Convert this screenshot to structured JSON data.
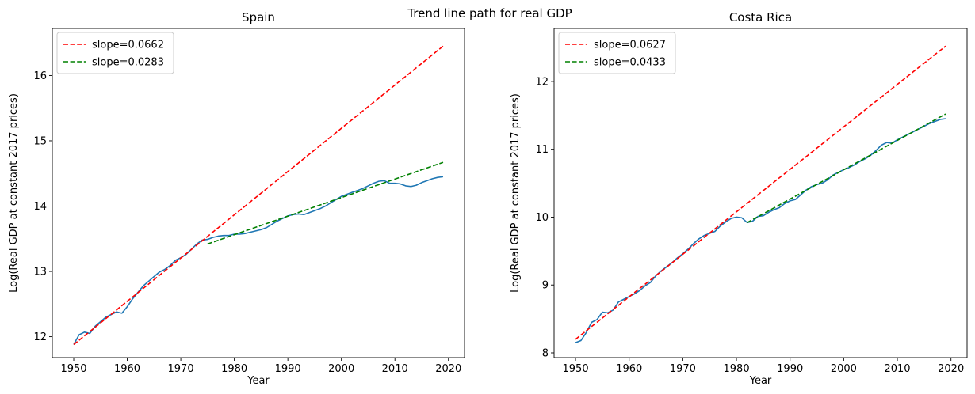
{
  "suptitle": "Trend line path for real GDP",
  "chart_data": [
    {
      "type": "line",
      "title": "Spain",
      "xlabel": "Year",
      "ylabel": "Log(Real GDP at constant 2017 prices)",
      "xlim": [
        1946,
        2023
      ],
      "ylim": [
        11.68,
        16.72
      ],
      "xticks": [
        1950,
        1960,
        1970,
        1980,
        1990,
        2000,
        2010,
        2020
      ],
      "yticks": [
        12,
        13,
        14,
        15,
        16
      ],
      "legend": "upper-left",
      "grid": false,
      "series": [
        {
          "name": "",
          "color": "#1f77b4",
          "style": "solid",
          "x": [
            1950,
            1951,
            1952,
            1953,
            1954,
            1955,
            1956,
            1957,
            1958,
            1959,
            1960,
            1961,
            1962,
            1963,
            1964,
            1965,
            1966,
            1967,
            1968,
            1969,
            1970,
            1971,
            1972,
            1973,
            1974,
            1975,
            1976,
            1977,
            1978,
            1979,
            1980,
            1981,
            1982,
            1983,
            1984,
            1985,
            1986,
            1987,
            1988,
            1989,
            1990,
            1991,
            1992,
            1993,
            1994,
            1995,
            1996,
            1997,
            1998,
            1999,
            2000,
            2001,
            2002,
            2003,
            2004,
            2005,
            2006,
            2007,
            2008,
            2009,
            2010,
            2011,
            2012,
            2013,
            2014,
            2015,
            2016,
            2017,
            2018,
            2019
          ],
          "y": [
            11.88,
            12.03,
            12.07,
            12.05,
            12.16,
            12.23,
            12.3,
            12.34,
            12.38,
            12.36,
            12.46,
            12.58,
            12.68,
            12.78,
            12.85,
            12.92,
            12.99,
            13.03,
            13.09,
            13.17,
            13.21,
            13.26,
            13.34,
            13.42,
            13.48,
            13.49,
            13.52,
            13.54,
            13.55,
            13.55,
            13.57,
            13.57,
            13.58,
            13.6,
            13.62,
            13.64,
            13.67,
            13.72,
            13.77,
            13.81,
            13.85,
            13.87,
            13.88,
            13.87,
            13.9,
            13.93,
            13.96,
            14.0,
            14.05,
            14.1,
            14.15,
            14.18,
            14.21,
            14.24,
            14.27,
            14.31,
            14.35,
            14.38,
            14.39,
            14.35,
            14.35,
            14.34,
            14.31,
            14.3,
            14.32,
            14.36,
            14.39,
            14.42,
            14.44,
            14.45
          ]
        },
        {
          "name": "slope=0.0662",
          "color": "#ff0000",
          "style": "dashed",
          "x": [
            1950,
            2019
          ],
          "y": [
            11.88,
            16.45
          ]
        },
        {
          "name": "slope=0.0283",
          "color": "#008000",
          "style": "dashed",
          "x": [
            1975,
            2019
          ],
          "y": [
            13.42,
            14.67
          ]
        }
      ]
    },
    {
      "type": "line",
      "title": "Costa Rica",
      "xlabel": "Year",
      "ylabel": "Log(Real GDP at constant 2017 prices)",
      "xlim": [
        1946,
        2023
      ],
      "ylim": [
        7.93,
        12.78
      ],
      "xticks": [
        1950,
        1960,
        1970,
        1980,
        1990,
        2000,
        2010,
        2020
      ],
      "yticks": [
        8,
        9,
        10,
        11,
        12
      ],
      "legend": "upper-left",
      "grid": false,
      "series": [
        {
          "name": "",
          "color": "#1f77b4",
          "style": "solid",
          "x": [
            1950,
            1951,
            1952,
            1953,
            1954,
            1955,
            1956,
            1957,
            1958,
            1959,
            1960,
            1961,
            1962,
            1963,
            1964,
            1965,
            1966,
            1967,
            1968,
            1969,
            1970,
            1971,
            1972,
            1973,
            1974,
            1975,
            1976,
            1977,
            1978,
            1979,
            1980,
            1981,
            1982,
            1983,
            1984,
            1985,
            1986,
            1987,
            1988,
            1989,
            1990,
            1991,
            1992,
            1993,
            1994,
            1995,
            1996,
            1997,
            1998,
            1999,
            2000,
            2001,
            2002,
            2003,
            2004,
            2005,
            2006,
            2007,
            2008,
            2009,
            2010,
            2011,
            2012,
            2013,
            2014,
            2015,
            2016,
            2017,
            2018,
            2019
          ],
          "y": [
            8.15,
            8.18,
            8.3,
            8.45,
            8.49,
            8.6,
            8.59,
            8.63,
            8.75,
            8.79,
            8.83,
            8.87,
            8.92,
            8.99,
            9.04,
            9.14,
            9.21,
            9.27,
            9.33,
            9.4,
            9.46,
            9.53,
            9.61,
            9.68,
            9.73,
            9.76,
            9.79,
            9.87,
            9.93,
            9.98,
            10.0,
            9.99,
            9.92,
            9.94,
            10.01,
            10.02,
            10.07,
            10.11,
            10.14,
            10.2,
            10.24,
            10.26,
            10.33,
            10.4,
            10.45,
            10.48,
            10.5,
            10.55,
            10.62,
            10.66,
            10.7,
            10.73,
            10.77,
            10.82,
            10.86,
            10.91,
            10.98,
            11.06,
            11.1,
            11.09,
            11.14,
            11.18,
            11.22,
            11.26,
            11.3,
            11.34,
            11.38,
            11.41,
            11.44,
            11.45
          ]
        },
        {
          "name": "slope=0.0627",
          "color": "#ff0000",
          "style": "dashed",
          "x": [
            1950,
            2019
          ],
          "y": [
            8.2,
            12.52
          ]
        },
        {
          "name": "slope=0.0433",
          "color": "#008000",
          "style": "dashed",
          "x": [
            1982,
            2019
          ],
          "y": [
            9.92,
            11.52
          ]
        }
      ]
    }
  ]
}
